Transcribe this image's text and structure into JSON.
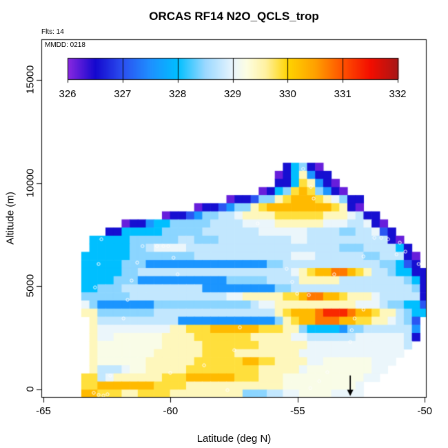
{
  "title": "ORCAS RF14 N2O_QCLS_trop",
  "annotations": {
    "flights": "Flts: 14",
    "date_label": "MMDD: 0218"
  },
  "chart_data": {
    "type": "heatmap",
    "title": "ORCAS RF14 N2O_QCLS_trop",
    "xlabel": "Latitude (deg N)",
    "ylabel": "Altitude (m)",
    "x_ticks": [
      -65,
      -60,
      -55,
      -50
    ],
    "x_tick_labels": [
      "-65",
      "-60",
      "-55",
      "-50"
    ],
    "y_ticks": [
      0,
      5000,
      10000,
      15000
    ],
    "y_tick_labels": [
      "0",
      "5000",
      "10000",
      "15000"
    ],
    "xlim": [
      -65.08,
      -50.07
    ],
    "ylim": [
      -400,
      16970
    ],
    "grid_lines": false,
    "legend_position": "top-inside",
    "colorbar": {
      "min": 326,
      "max": 332,
      "ticks": [
        326,
        327,
        328,
        329,
        330,
        331,
        332
      ],
      "tick_labels": [
        "326",
        "327",
        "328",
        "329",
        "330",
        "331",
        "332"
      ],
      "stops": [
        [
          326.0,
          "#8A28E0"
        ],
        [
          326.5,
          "#1408CE"
        ],
        [
          327.0,
          "#2B50F0"
        ],
        [
          327.5,
          "#1E90FF"
        ],
        [
          328.0,
          "#00BFFF"
        ],
        [
          328.5,
          "#9BD8FF"
        ],
        [
          329.0,
          "#E9F5FD"
        ],
        [
          329.25,
          "#FDFEE2"
        ],
        [
          329.6,
          "#FFF1A0"
        ],
        [
          330.0,
          "#FFD400"
        ],
        [
          330.5,
          "#FFA000"
        ],
        [
          331.0,
          "#FF5000"
        ],
        [
          331.5,
          "#F30D00"
        ],
        [
          332.0,
          "#A81616"
        ]
      ]
    },
    "grid": {
      "comment": "N2O (ppb) binned by latitude x altitude; '.' = no data; chars map to ppb via value_palette",
      "lat_left": -63.51,
      "dlat": 0.3172,
      "alt_top": 10985,
      "dalt": 392.7,
      "ncols": 43,
      "nrows": 29,
      "value_palette": {
        "P": 326.15,
        "N": 326.55,
        "B": 327.05,
        "b": 327.55,
        "C": 328.0,
        "c": 328.45,
        "L": 328.75,
        "w": 329.02,
        "m": 329.2,
        "y": 329.45,
        "Y": 329.85,
        "G": 330.25,
        "O": 330.75,
        "R": 331.3,
        "D": 331.7
      },
      "rows": [
        ".........................NCcNP.............",
        "........................PNCybNN............",
        "........................NNCYybNP...........",
        "......................PNCcYGYcbNP..........",
        "..................PNNBccyYGGGYywcNN........",
        "..............PNNBbccyYGGGGGGGGYyNP........",
        "..........PNNBbccLLwyyyyYYYYYYyyywLNN......",
        ".....PNNbCCcccccLLLLwwwwyyyyyywwwLLwNP.....",
        "...NNCCCCCcccccLLLLLLLwwwwwwLLLLccLLwBN....",
        ".CCCCCccccccLLcccLLLLLLLLLwwLLLLLLLLLLNP...",
        ".CCCCCccLwwwwLLLLLLLLLLLLLLLLLLLcccLLLLCN..",
        "CCCCCCccccccccLLLLLLLLLLLLwwwLLLLLLccLLLNP.",
        "CCCCCcccbbbbbbbbbbbbbbbccLLLLLLLLLLLLccCBN.",
        "CCCCCccLLLLLLLLLLLLLLLLLLLwyYGGOOGYyLLcCCNN",
        "CCCCcccbbbbbbbbbbbcccccLLLLyyyyyLLLLLLLLcCN",
        "CCcccLLLLLLLLLLbbbbbbbbbccLLLLLLLLLLLLLLLcN",
        "ccccccLLLLLLLLLLLLwwyyyyyYYGOOGGYyyywLLLLLN",
        "wcbbbbbbbccccccccccccLwwyyyyyyyyyywwwLccCCB",
        "yycccccccLLLLLLLLLLLLLLLyYGGGORRROGGYyyLcCC",
        ".yLLLLLLLLLLbbbbbbbbbbbbcyYGGOOOGGYYyywLcB.",
        ".ywwwwwwwwwyyYYYGGGGGGYYYyycCCCCbccLLLLLLb.",
        ".ywwmmmmmmyyyyYYYYYYYyyyyywwLLLLLLwwwwwwLN.",
        ".ymmmmmmmmyyyyyYYYYYYYyyyyyywwwwwwwwwwwwL..",
        ".ymmmmmmmyyyyyyYYYYyyyyyyyywwwwwwwwwwwww...",
        ".ymmmmmmyyyyyyYYYYYYGGYYyyyywwmmmmmmwww....",
        ".yLLLwmmyyyyyYYYYYYYYYyyyyywmmmmmmmmww.....",
        "YYLwyyyyyyYYYGGGGGGYYYyyymmmmmmmmmmww......",
        "YYGGGGGGGYYYYyyyyyyyyyyyymmmmmmmmmw........",
        "GGYYYyyYYYYyyyyyyyyycccLLwwmmmmwwww........"
      ]
    },
    "markers": {
      "symbol": "open-circle",
      "color": "#FFFFFF",
      "points": [
        [
          -62.72,
          7280
        ],
        [
          -62.83,
          6077
        ],
        [
          -61.1,
          6945
        ],
        [
          -60.53,
          6945
        ],
        [
          -60.28,
          6945
        ],
        [
          -60.09,
          6945
        ],
        [
          -59.88,
          6378
        ],
        [
          -61.31,
          6144
        ],
        [
          -59.72,
          5577
        ],
        [
          -61.53,
          5276
        ],
        [
          -62.97,
          4942
        ],
        [
          -61.69,
          4341
        ],
        [
          -54.78,
          10685
        ],
        [
          -54.48,
          9817
        ],
        [
          -54.37,
          9250
        ],
        [
          -56.57,
          8047
        ],
        [
          -51.98,
          7346
        ],
        [
          -51.71,
          7346
        ],
        [
          -51.44,
          7279
        ],
        [
          -50.76,
          6678
        ],
        [
          -52.41,
          6444
        ],
        [
          -50.24,
          6077
        ],
        [
          -55.43,
          5843
        ],
        [
          -53.56,
          5577
        ],
        [
          -55.21,
          5209
        ],
        [
          -55.02,
          4641
        ],
        [
          -54.56,
          4575
        ],
        [
          -52.41,
          3873
        ],
        [
          -52.76,
          3439
        ],
        [
          -52.87,
          2872
        ],
        [
          -52.93,
          2304
        ],
        [
          -61.85,
          3439
        ],
        [
          -57.27,
          3005
        ],
        [
          -57.49,
          1903
        ],
        [
          -58.68,
          1169
        ],
        [
          -60.01,
          801
        ],
        [
          -62.37,
          668
        ],
        [
          -63.02,
          -167
        ],
        [
          -62.83,
          -267
        ],
        [
          -62.64,
          -300
        ],
        [
          -62.48,
          -234
        ],
        [
          -57.76,
          -33
        ],
        [
          -53.83,
          835
        ],
        [
          -54.15,
          401
        ],
        [
          -54.5,
          67
        ],
        [
          -50.98,
          7112
        ],
        [
          -51.11,
          6545
        ]
      ]
    },
    "arrow": {
      "lat": -52.93,
      "alt_from": 680,
      "alt_to": -320,
      "direction": "down",
      "color": "#000000"
    }
  }
}
